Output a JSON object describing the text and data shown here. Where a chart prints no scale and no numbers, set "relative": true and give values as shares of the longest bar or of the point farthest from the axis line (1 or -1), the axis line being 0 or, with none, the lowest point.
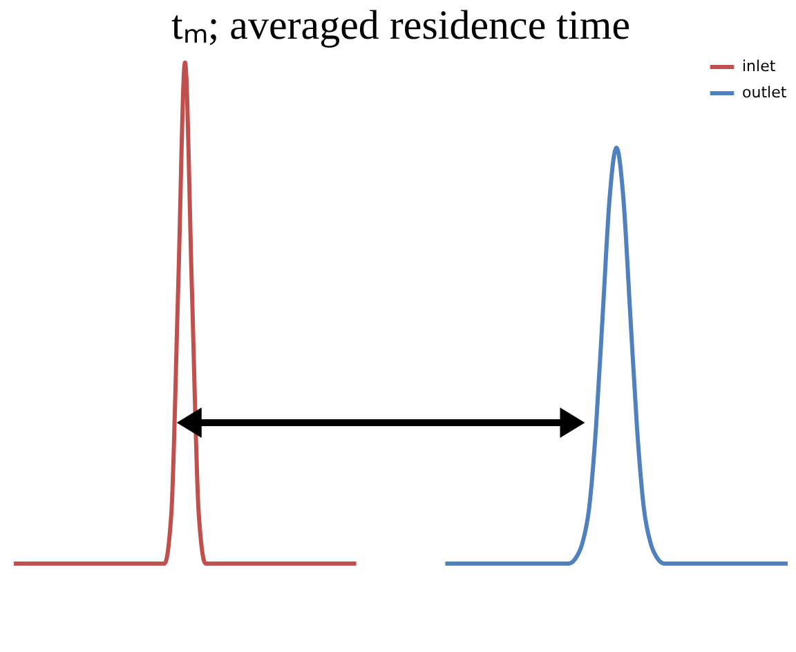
{
  "chart_data": {
    "type": "line",
    "relative": true,
    "title": "tₘ; averaged residence time",
    "legend": "top right",
    "categories": [
      null,
      null,
      null,
      null,
      null,
      null,
      null,
      null,
      null,
      null,
      null,
      null,
      null,
      null,
      null,
      null,
      null,
      null,
      null,
      null,
      null,
      null,
      null,
      null,
      null,
      null,
      null,
      null,
      null,
      null,
      null,
      null,
      null,
      null,
      null,
      null,
      null,
      null,
      null,
      null,
      null,
      null,
      null,
      null,
      null,
      null,
      null,
      null,
      null,
      null,
      null,
      null,
      null,
      null,
      null,
      null,
      null,
      null,
      null,
      null,
      null,
      null,
      null,
      null,
      null,
      null,
      null,
      null,
      null,
      null,
      null,
      null,
      null,
      null,
      null,
      null,
      null,
      null,
      null,
      null,
      null,
      null,
      null,
      null,
      null,
      null,
      null,
      null,
      null,
      null,
      null,
      null,
      null,
      null,
      null,
      null,
      null,
      null,
      null,
      null,
      null,
      null,
      null,
      null,
      null,
      null,
      null,
      null,
      null,
      null,
      null,
      null,
      null,
      null
    ],
    "series": [
      {
        "name": "inlet",
        "color": "#c0504d",
        "values": [
          0,
          0,
          0,
          0,
          0,
          0,
          0,
          0,
          0,
          0,
          0,
          0,
          0,
          0,
          0,
          0,
          0,
          0,
          0,
          0,
          0,
          0,
          0,
          0.1,
          0.55,
          1,
          0.55,
          0.1,
          0,
          0,
          0,
          0,
          0,
          0,
          0,
          0,
          0,
          0,
          0,
          0,
          0,
          0,
          0,
          0,
          0,
          0,
          0,
          0,
          0,
          0,
          0,
          null,
          null,
          null,
          null,
          null,
          null,
          null,
          null,
          null,
          null,
          null,
          null,
          null,
          null,
          null,
          null,
          null,
          null,
          null,
          null,
          null,
          null,
          null,
          null,
          null,
          null,
          null,
          null,
          null,
          null,
          null,
          null,
          null,
          null,
          null,
          null,
          null,
          null,
          null,
          null,
          null,
          null,
          null,
          null,
          null,
          null,
          null,
          null,
          null,
          null,
          null,
          null,
          null,
          null,
          null,
          null,
          null,
          null,
          null,
          null,
          null,
          null,
          null
        ]
      },
      {
        "name": "outlet",
        "color": "#4f81bd",
        "values": [
          null,
          null,
          null,
          null,
          null,
          null,
          null,
          null,
          null,
          null,
          null,
          null,
          null,
          null,
          null,
          null,
          null,
          null,
          null,
          null,
          null,
          null,
          null,
          null,
          null,
          null,
          null,
          null,
          null,
          null,
          null,
          null,
          null,
          null,
          null,
          null,
          null,
          null,
          null,
          null,
          null,
          null,
          null,
          null,
          null,
          null,
          null,
          null,
          null,
          null,
          null,
          null,
          null,
          null,
          null,
          null,
          null,
          null,
          null,
          null,
          null,
          null,
          null,
          0,
          0,
          0,
          0,
          0,
          0,
          0,
          0,
          0,
          0,
          0,
          0,
          0,
          0,
          0,
          0,
          0,
          0,
          0,
          0.01,
          0.04,
          0.11,
          0.27,
          0.5,
          0.73,
          0.83,
          0.73,
          0.5,
          0.27,
          0.11,
          0.04,
          0.01,
          0,
          0,
          0,
          0,
          0,
          0,
          0,
          0,
          0,
          0,
          0,
          0,
          0,
          0,
          0,
          0,
          0,
          0,
          0
        ]
      }
    ]
  }
}
